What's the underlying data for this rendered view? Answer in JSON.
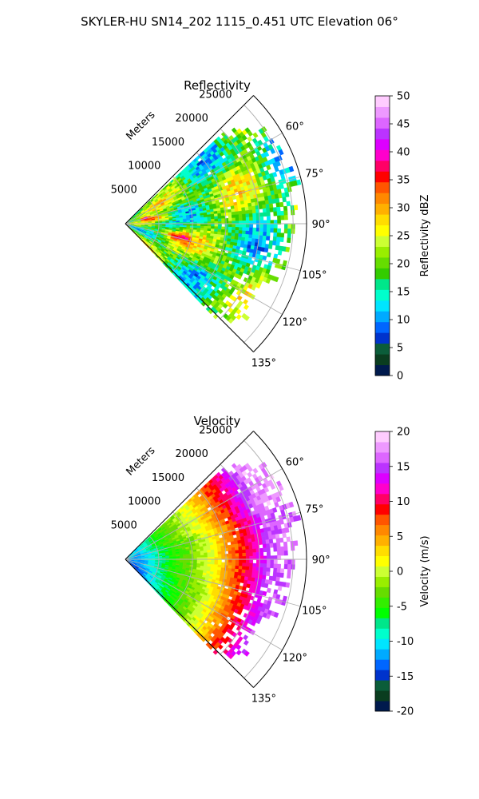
{
  "figure": {
    "suptitle": "SKYLER-HU  SN14_202  1115_0.451 UTC Elevation 06°"
  },
  "chart_data": [
    {
      "type": "heatmap",
      "subtype": "polar-sector-ppi",
      "title": "Reflectivity",
      "range_label": "Meters",
      "range_ticks": [
        5000,
        10000,
        15000,
        20000,
        25000
      ],
      "range_max": 27000,
      "angle_ticks": [
        "60°",
        "75°",
        "90°",
        "105°",
        "120°",
        "135°"
      ],
      "angle_tick_values": [
        60,
        75,
        90,
        105,
        120,
        135
      ],
      "angle_range": [
        45,
        135
      ],
      "grid": true,
      "colorbar": {
        "label": "Reflectivity dBZ",
        "ticks": [
          "0",
          "5",
          "10",
          "15",
          "20",
          "25",
          "30",
          "35",
          "40",
          "45",
          "50"
        ],
        "range": [
          0,
          50
        ],
        "colors": [
          "#001a4d",
          "#0a3d1f",
          "#0b5d3a",
          "#0033cc",
          "#0066ff",
          "#00aaff",
          "#00e5ff",
          "#00ffcc",
          "#00e68a",
          "#33cc00",
          "#66dd00",
          "#99ee00",
          "#ccff33",
          "#ffff00",
          "#ffdd00",
          "#ffb000",
          "#ff8800",
          "#ff5500",
          "#ff0000",
          "#ff0066",
          "#ff00cc",
          "#dd00ff",
          "#bb33ff",
          "#dd66ff",
          "#ee99ff",
          "#ffccff"
        ]
      },
      "field_description": "Echo 3000–26000 m across 47°–135°; mostly 18–26 dBZ, 30–40 dBZ near 5000–10000 m at 80°–105°"
    },
    {
      "type": "heatmap",
      "subtype": "polar-sector-ppi",
      "title": "Velocity",
      "range_label": "Meters",
      "range_ticks": [
        5000,
        10000,
        15000,
        20000,
        25000
      ],
      "range_max": 27000,
      "angle_ticks": [
        "60°",
        "75°",
        "90°",
        "105°",
        "120°",
        "135°"
      ],
      "angle_tick_values": [
        60,
        75,
        90,
        105,
        120,
        135
      ],
      "angle_range": [
        45,
        135
      ],
      "grid": true,
      "colorbar": {
        "label": "Velocity (m/s)",
        "ticks": [
          "-20",
          "-15",
          "-10",
          "-5",
          "0",
          "5",
          "10",
          "15",
          "20"
        ],
        "range": [
          -20,
          20
        ],
        "colors": [
          "#001a4d",
          "#0a3d1f",
          "#0b5d3a",
          "#0033cc",
          "#0066ff",
          "#00aaff",
          "#00e5ff",
          "#00ffcc",
          "#00e68a",
          "#00ff00",
          "#33ee00",
          "#66dd00",
          "#99ee00",
          "#ccff33",
          "#ffff00",
          "#ffdd00",
          "#ffb000",
          "#ff8800",
          "#ff5500",
          "#ff0000",
          "#ff0066",
          "#ff00cc",
          "#dd00ff",
          "#bb33ff",
          "#dd66ff",
          "#ee99ff",
          "#ffccff"
        ]
      },
      "field_description": "Velocity increases with range: about -12 m/s near the radar, -5 near 5000 m, 0 near 12000 m, 10 near 18000 m, 15 beyond 21000 m"
    }
  ]
}
